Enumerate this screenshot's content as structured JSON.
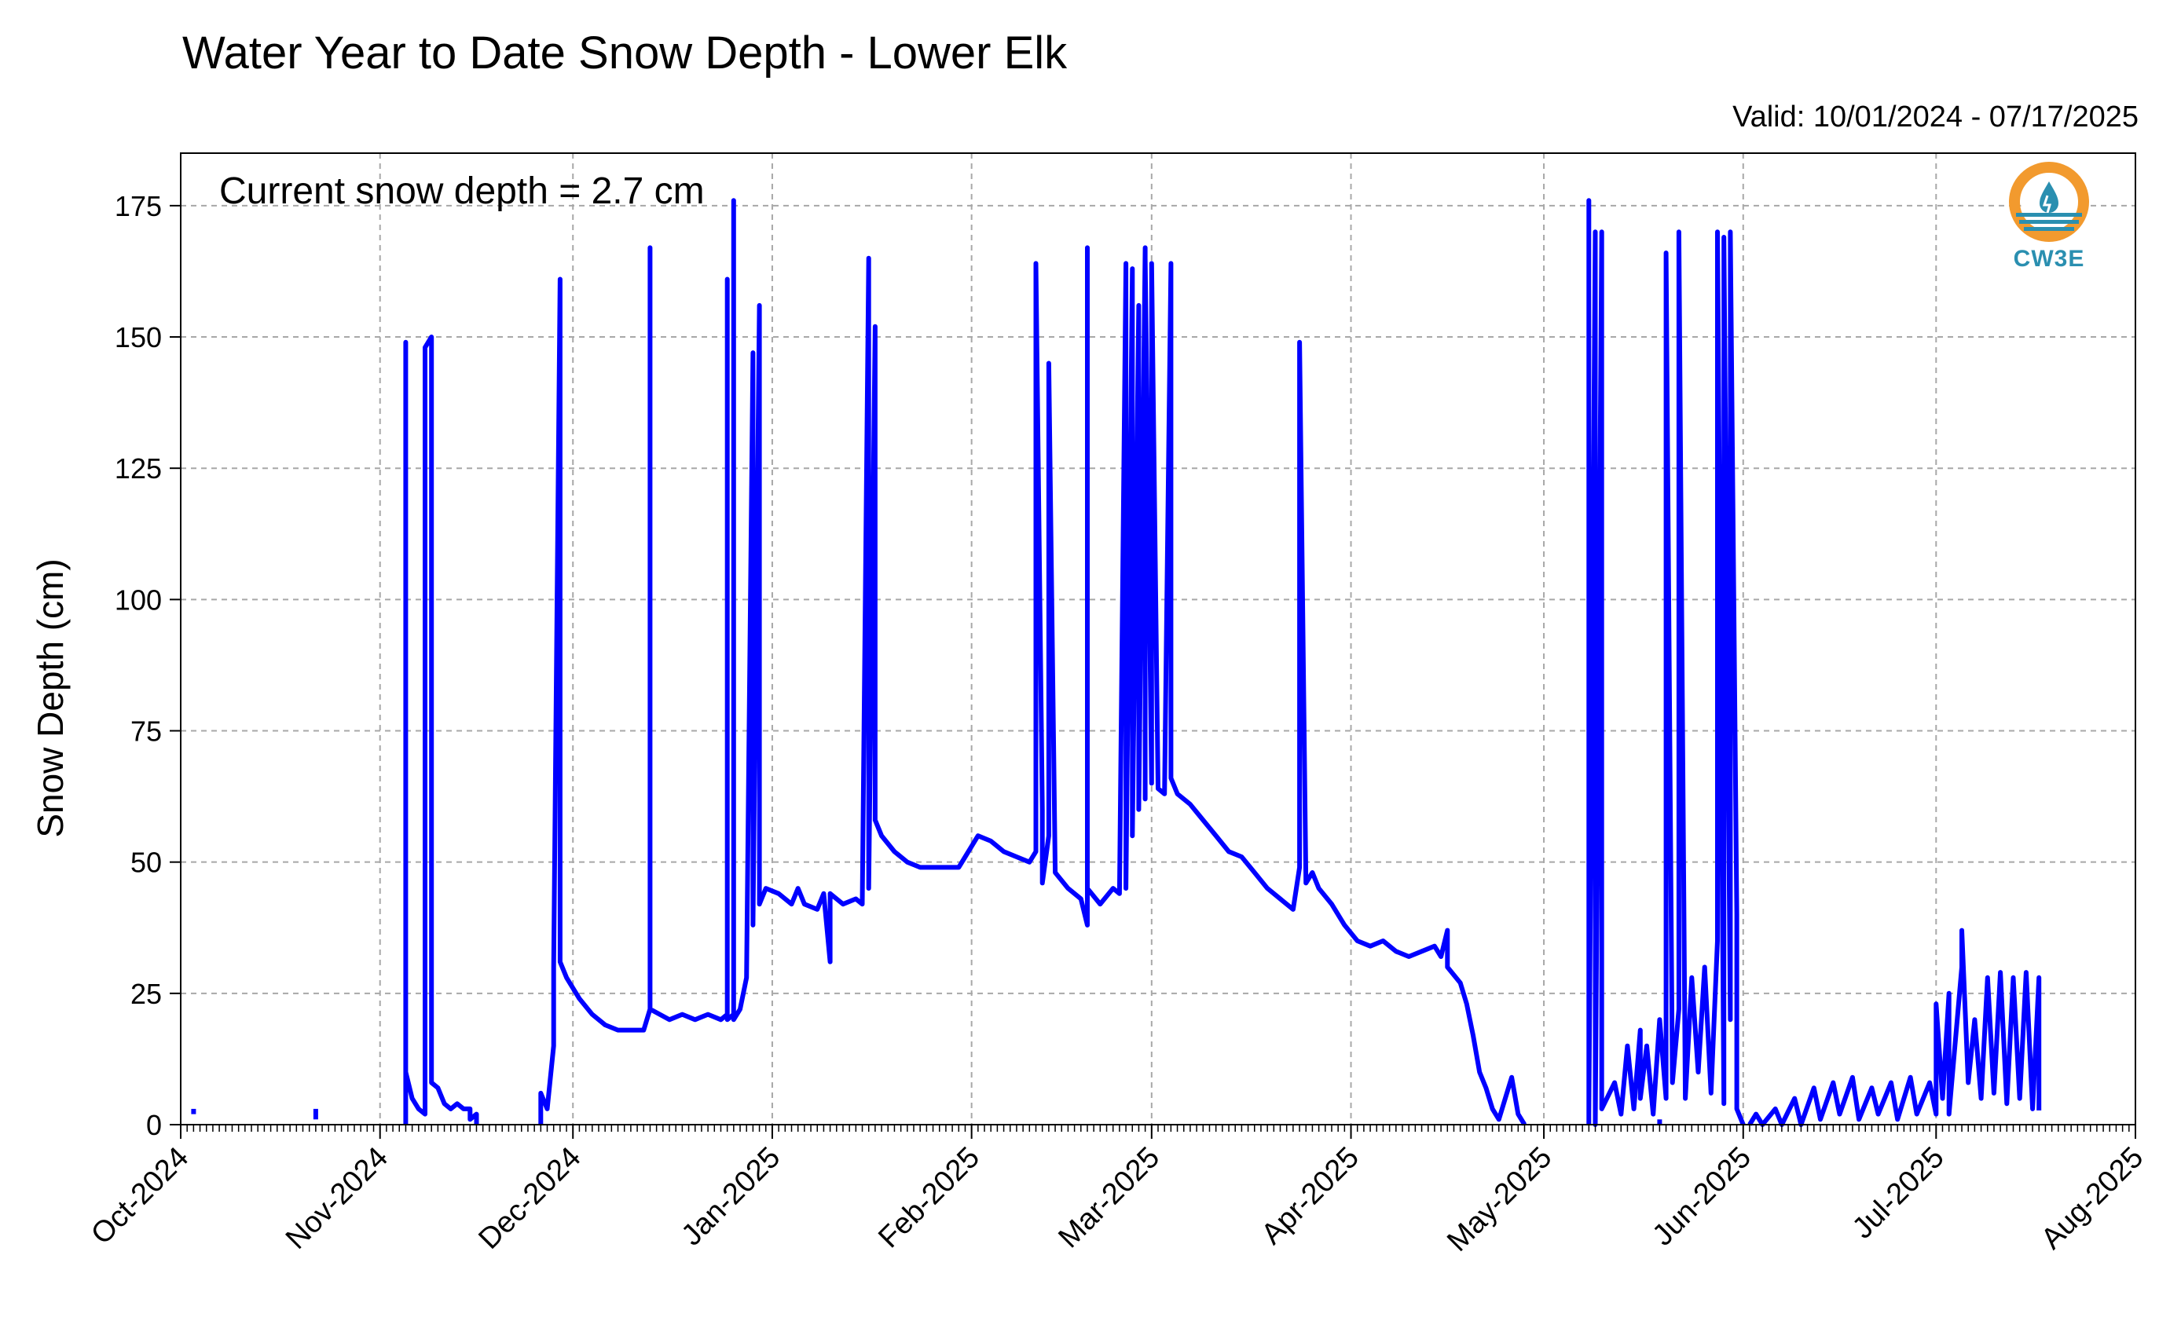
{
  "header": {
    "title": "Water Year to Date Snow Depth - Lower Elk",
    "valid": "Valid: 10/01/2024 - 07/17/2025"
  },
  "annotation": "Current snow depth = 2.7 cm",
  "logo": {
    "text": "CW3E",
    "ring_color": "#f29a2e",
    "accent_color": "#2a8fb0"
  },
  "chart_data": {
    "type": "line",
    "title": "Water Year to Date Snow Depth - Lower Elk",
    "xlabel": "",
    "ylabel": "Snow Depth (cm)",
    "xlim": [
      "2024-10-01",
      "2025-08-01"
    ],
    "ylim": [
      0,
      185
    ],
    "y_ticks": [
      0,
      25,
      50,
      75,
      100,
      125,
      150,
      175
    ],
    "x_ticks": [
      {
        "date": "2024-10-01",
        "label": "Oct-2024"
      },
      {
        "date": "2024-11-01",
        "label": "Nov-2024"
      },
      {
        "date": "2024-12-01",
        "label": "Dec-2024"
      },
      {
        "date": "2025-01-01",
        "label": "Jan-2025"
      },
      {
        "date": "2025-02-01",
        "label": "Feb-2025"
      },
      {
        "date": "2025-03-01",
        "label": "Mar-2025"
      },
      {
        "date": "2025-04-01",
        "label": "Apr-2025"
      },
      {
        "date": "2025-05-01",
        "label": "May-2025"
      },
      {
        "date": "2025-06-01",
        "label": "Jun-2025"
      },
      {
        "date": "2025-07-01",
        "label": "Jul-2025"
      },
      {
        "date": "2025-08-01",
        "label": "Aug-2025"
      }
    ],
    "grid": true,
    "line_color": "#0000ff",
    "series": [
      {
        "segments": [
          [
            [
              "2024-10-03",
              3
            ],
            [
              "2024-10-03",
              2
            ]
          ],
          [
            [
              "2024-10-22",
              3
            ],
            [
              "2024-10-22",
              1
            ]
          ],
          [
            [
              "2024-11-05",
              0
            ],
            [
              "2024-11-05",
              149
            ],
            [
              "2024-11-05",
              10
            ],
            [
              "2024-11-06",
              5
            ],
            [
              "2024-11-07",
              3
            ],
            [
              "2024-11-08",
              2
            ],
            [
              "2024-11-08",
              148
            ],
            [
              "2024-11-09",
              150
            ],
            [
              "2024-11-09",
              8
            ],
            [
              "2024-11-10",
              7
            ],
            [
              "2024-11-11",
              4
            ],
            [
              "2024-11-12",
              3
            ],
            [
              "2024-11-13",
              4
            ],
            [
              "2024-11-14",
              3
            ],
            [
              "2024-11-15",
              3
            ],
            [
              "2024-11-15",
              1
            ],
            [
              "2024-11-16",
              2
            ],
            [
              "2024-11-16",
              0
            ]
          ],
          [
            [
              "2024-11-26",
              0
            ],
            [
              "2024-11-26",
              6
            ],
            [
              "2024-11-27",
              3
            ],
            [
              "2024-11-28",
              15
            ],
            [
              "2024-11-28",
              30
            ],
            [
              "2024-11-29",
              161
            ],
            [
              "2024-11-29",
              31
            ],
            [
              "2024-11-30",
              28
            ],
            [
              "2024-12-02",
              24
            ],
            [
              "2024-12-04",
              21
            ],
            [
              "2024-12-06",
              19
            ],
            [
              "2024-12-08",
              18
            ],
            [
              "2024-12-10",
              18
            ],
            [
              "2024-12-12",
              18
            ],
            [
              "2024-12-13",
              22
            ],
            [
              "2024-12-13",
              167
            ],
            [
              "2024-12-13",
              22
            ],
            [
              "2024-12-16",
              20
            ],
            [
              "2024-12-18",
              21
            ],
            [
              "2024-12-20",
              20
            ],
            [
              "2024-12-22",
              21
            ],
            [
              "2024-12-24",
              20
            ],
            [
              "2024-12-25",
              21
            ],
            [
              "2024-12-25",
              161
            ],
            [
              "2024-12-25",
              20
            ],
            [
              "2024-12-26",
              21
            ],
            [
              "2024-12-26",
              176
            ],
            [
              "2024-12-26",
              20
            ],
            [
              "2024-12-27",
              22
            ],
            [
              "2024-12-28",
              28
            ],
            [
              "2024-12-29",
              147
            ],
            [
              "2024-12-29",
              38
            ],
            [
              "2024-12-30",
              156
            ],
            [
              "2024-12-30",
              42
            ],
            [
              "2024-12-31",
              45
            ],
            [
              "2025-01-02",
              44
            ],
            [
              "2025-01-04",
              42
            ],
            [
              "2025-01-05",
              45
            ],
            [
              "2025-01-06",
              42
            ],
            [
              "2025-01-08",
              41
            ],
            [
              "2025-01-09",
              44
            ],
            [
              "2025-01-10",
              31
            ],
            [
              "2025-01-10",
              44
            ],
            [
              "2025-01-12",
              42
            ],
            [
              "2025-01-14",
              43
            ],
            [
              "2025-01-15",
              42
            ],
            [
              "2025-01-16",
              165
            ],
            [
              "2025-01-16",
              45
            ],
            [
              "2025-01-17",
              152
            ],
            [
              "2025-01-17",
              58
            ],
            [
              "2025-01-18",
              55
            ],
            [
              "2025-01-20",
              52
            ],
            [
              "2025-01-22",
              50
            ],
            [
              "2025-01-24",
              49
            ],
            [
              "2025-01-26",
              49
            ],
            [
              "2025-01-28",
              49
            ],
            [
              "2025-01-30",
              49
            ],
            [
              "2025-01-31",
              51
            ],
            [
              "2025-02-02",
              55
            ],
            [
              "2025-02-04",
              54
            ],
            [
              "2025-02-06",
              52
            ],
            [
              "2025-02-08",
              51
            ],
            [
              "2025-02-10",
              50
            ],
            [
              "2025-02-11",
              52
            ],
            [
              "2025-02-11",
              164
            ],
            [
              "2025-02-12",
              60
            ],
            [
              "2025-02-12",
              46
            ],
            [
              "2025-02-13",
              55
            ],
            [
              "2025-02-13",
              145
            ],
            [
              "2025-02-14",
              48
            ],
            [
              "2025-02-16",
              45
            ],
            [
              "2025-02-18",
              43
            ],
            [
              "2025-02-19",
              38
            ],
            [
              "2025-02-19",
              167
            ],
            [
              "2025-02-19",
              45
            ],
            [
              "2025-02-21",
              42
            ],
            [
              "2025-02-23",
              45
            ],
            [
              "2025-02-24",
              44
            ],
            [
              "2025-02-25",
              164
            ],
            [
              "2025-02-25",
              45
            ],
            [
              "2025-02-26",
              163
            ],
            [
              "2025-02-26",
              55
            ],
            [
              "2025-02-27",
              156
            ],
            [
              "2025-02-27",
              60
            ],
            [
              "2025-02-28",
              167
            ],
            [
              "2025-02-28",
              62
            ],
            [
              "2025-02-28",
              165
            ],
            [
              "2025-03-01",
              65
            ],
            [
              "2025-03-01",
              164
            ],
            [
              "2025-03-02",
              64
            ],
            [
              "2025-03-03",
              63
            ],
            [
              "2025-03-04",
              164
            ],
            [
              "2025-03-04",
              66
            ],
            [
              "2025-03-05",
              63
            ],
            [
              "2025-03-07",
              61
            ],
            [
              "2025-03-09",
              58
            ],
            [
              "2025-03-11",
              55
            ],
            [
              "2025-03-13",
              52
            ],
            [
              "2025-03-15",
              51
            ],
            [
              "2025-03-17",
              48
            ],
            [
              "2025-03-19",
              45
            ],
            [
              "2025-03-21",
              43
            ],
            [
              "2025-03-23",
              41
            ],
            [
              "2025-03-24",
              49
            ],
            [
              "2025-03-24",
              149
            ],
            [
              "2025-03-25",
              46
            ],
            [
              "2025-03-26",
              48
            ],
            [
              "2025-03-27",
              45
            ],
            [
              "2025-03-29",
              42
            ],
            [
              "2025-03-31",
              38
            ],
            [
              "2025-04-02",
              35
            ],
            [
              "2025-04-04",
              34
            ],
            [
              "2025-04-06",
              35
            ],
            [
              "2025-04-08",
              33
            ],
            [
              "2025-04-10",
              32
            ],
            [
              "2025-04-12",
              33
            ],
            [
              "2025-04-14",
              34
            ],
            [
              "2025-04-15",
              32
            ],
            [
              "2025-04-16",
              37
            ],
            [
              "2025-04-16",
              30
            ],
            [
              "2025-04-18",
              27
            ],
            [
              "2025-04-19",
              23
            ],
            [
              "2025-04-20",
              17
            ],
            [
              "2025-04-21",
              10
            ],
            [
              "2025-04-22",
              7
            ],
            [
              "2025-04-23",
              3
            ],
            [
              "2025-04-24",
              1
            ],
            [
              "2025-04-25",
              5
            ],
            [
              "2025-04-26",
              9
            ],
            [
              "2025-04-27",
              2
            ],
            [
              "2025-04-28",
              0
            ]
          ],
          [
            [
              "2025-05-19",
              1
            ],
            [
              "2025-05-19",
              0
            ]
          ],
          [
            [
              "2025-05-08",
              0
            ],
            [
              "2025-05-08",
              176
            ],
            [
              "2025-05-08",
              2
            ],
            [
              "2025-05-09",
              170
            ],
            [
              "2025-05-09",
              0
            ],
            [
              "2025-05-10",
              170
            ],
            [
              "2025-05-10",
              3
            ],
            [
              "2025-05-12",
              8
            ],
            [
              "2025-05-13",
              2
            ],
            [
              "2025-05-14",
              15
            ],
            [
              "2025-05-15",
              3
            ],
            [
              "2025-05-16",
              18
            ],
            [
              "2025-05-16",
              5
            ],
            [
              "2025-05-17",
              15
            ],
            [
              "2025-05-18",
              2
            ],
            [
              "2025-05-19",
              20
            ],
            [
              "2025-05-20",
              5
            ],
            [
              "2025-05-20",
              166
            ],
            [
              "2025-05-21",
              8
            ],
            [
              "2025-05-22",
              22
            ],
            [
              "2025-05-22",
              170
            ],
            [
              "2025-05-23",
              5
            ],
            [
              "2025-05-24",
              28
            ],
            [
              "2025-05-25",
              10
            ],
            [
              "2025-05-26",
              30
            ],
            [
              "2025-05-27",
              6
            ],
            [
              "2025-05-28",
              35
            ],
            [
              "2025-05-28",
              170
            ],
            [
              "2025-05-29",
              4
            ],
            [
              "2025-05-29",
              169
            ],
            [
              "2025-05-30",
              20
            ],
            [
              "2025-05-30",
              170
            ],
            [
              "2025-05-31",
              40
            ],
            [
              "2025-05-31",
              3
            ],
            [
              "2025-06-01",
              0
            ]
          ],
          [
            [
              "2025-06-02",
              0
            ],
            [
              "2025-06-03",
              2
            ],
            [
              "2025-06-04",
              0
            ],
            [
              "2025-06-06",
              3
            ],
            [
              "2025-06-07",
              0
            ],
            [
              "2025-06-09",
              5
            ],
            [
              "2025-06-10",
              0
            ],
            [
              "2025-06-12",
              7
            ],
            [
              "2025-06-13",
              1
            ],
            [
              "2025-06-15",
              8
            ],
            [
              "2025-06-16",
              2
            ],
            [
              "2025-06-18",
              9
            ],
            [
              "2025-06-19",
              1
            ],
            [
              "2025-06-21",
              7
            ],
            [
              "2025-06-22",
              2
            ],
            [
              "2025-06-24",
              8
            ],
            [
              "2025-06-25",
              1
            ],
            [
              "2025-06-27",
              9
            ],
            [
              "2025-06-28",
              2
            ],
            [
              "2025-06-30",
              8
            ],
            [
              "2025-07-01",
              2
            ],
            [
              "2025-07-01",
              23
            ],
            [
              "2025-07-02",
              5
            ],
            [
              "2025-07-03",
              25
            ],
            [
              "2025-07-03",
              2
            ],
            [
              "2025-07-05",
              30
            ],
            [
              "2025-07-05",
              37
            ],
            [
              "2025-07-06",
              8
            ],
            [
              "2025-07-07",
              20
            ],
            [
              "2025-07-08",
              5
            ],
            [
              "2025-07-09",
              28
            ],
            [
              "2025-07-10",
              6
            ],
            [
              "2025-07-11",
              29
            ],
            [
              "2025-07-12",
              4
            ],
            [
              "2025-07-13",
              28
            ],
            [
              "2025-07-14",
              5
            ],
            [
              "2025-07-15",
              29
            ],
            [
              "2025-07-16",
              3
            ],
            [
              "2025-07-17",
              28
            ],
            [
              "2025-07-17",
              2.7
            ]
          ]
        ]
      }
    ]
  }
}
